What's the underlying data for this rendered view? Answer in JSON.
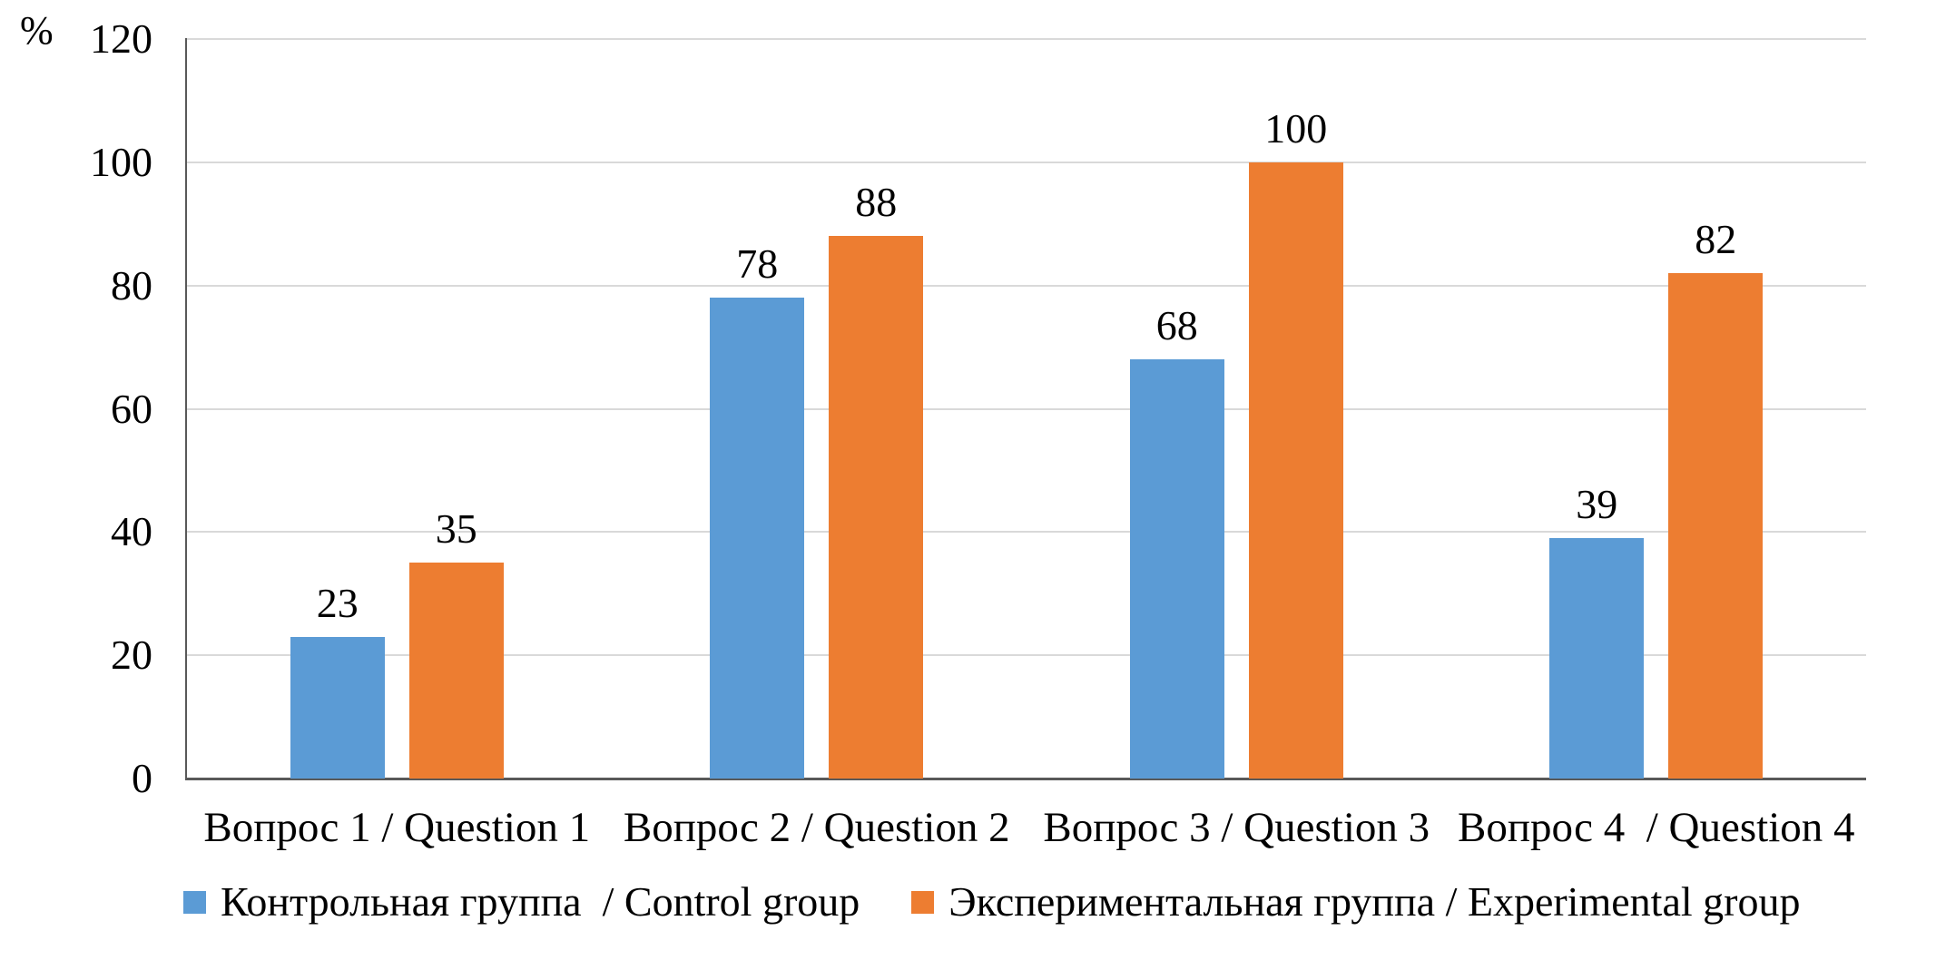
{
  "chart_data": {
    "type": "bar",
    "title": "",
    "unit_label": "%",
    "categories": [
      "Вопрос 1 / Question 1",
      "Вопрос 2 / Question 2",
      "Вопрос 3 / Question 3",
      "Вопрос 4  / Question 4"
    ],
    "series": [
      {
        "key": "control",
        "name": "Контрольная группа  / Control group",
        "color": "#5B9BD5",
        "values": [
          23,
          78,
          68,
          39
        ]
      },
      {
        "key": "experimental",
        "name": "Экспериментальная группа / Experimental group",
        "color": "#ED7D31",
        "values": [
          35,
          88,
          100,
          82
        ]
      }
    ],
    "ylim": [
      0,
      120
    ],
    "yticks": [
      0,
      20,
      40,
      60,
      80,
      100,
      120
    ],
    "grid": true,
    "data_labels": true,
    "legend_position": "bottom"
  },
  "colors": {
    "background": "#FFFFFF",
    "gridline": "#D9D9D9",
    "axis": "#595959",
    "text": "#000000"
  }
}
